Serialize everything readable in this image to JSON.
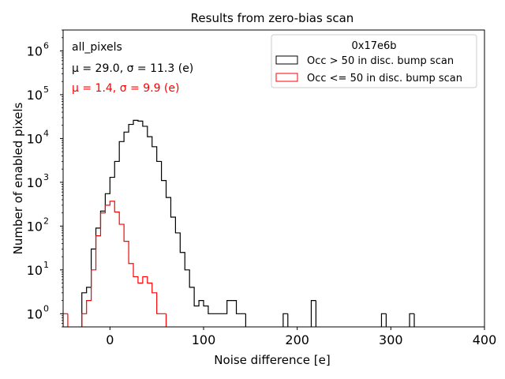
{
  "chart_data": {
    "type": "histogram",
    "title": "Results from zero-bias scan",
    "xlabel": "Noise difference [e]",
    "ylabel": "Number of enabled pixels",
    "xlim": [
      -50,
      400
    ],
    "ylim": [
      0.5,
      3000000
    ],
    "yscale": "log",
    "bin_width": 5,
    "x_ticks": [
      0,
      100,
      200,
      300,
      400
    ],
    "x_tick_labels": [
      "0",
      "100",
      "200",
      "300",
      "400"
    ],
    "y_ticks": [
      1,
      10,
      100,
      1000,
      10000,
      100000,
      1000000
    ],
    "y_tick_labels": [
      {
        "base": "10",
        "exp": "0"
      },
      {
        "base": "10",
        "exp": "1"
      },
      {
        "base": "10",
        "exp": "2"
      },
      {
        "base": "10",
        "exp": "3"
      },
      {
        "base": "10",
        "exp": "4"
      },
      {
        "base": "10",
        "exp": "5"
      },
      {
        "base": "10",
        "exp": "6"
      }
    ],
    "annotations": [
      {
        "text": "all_pixels",
        "color": "#000000"
      },
      {
        "text": "μ = 29.0, σ = 11.3 (e)",
        "color": "#000000"
      },
      {
        "text": "μ = 1.4, σ = 9.9 (e)",
        "color": "#ff0000"
      }
    ],
    "legend": {
      "title": "0x17e6b",
      "position": "top-right",
      "entries": [
        {
          "label": "Occ > 50 in disc. bump scan",
          "color": "#000000"
        },
        {
          "label": "Occ <= 50 in disc. bump scan",
          "color": "#ff0000"
        }
      ]
    },
    "series": [
      {
        "name": "Occ > 50 in disc. bump scan",
        "color": "#000000",
        "bins": [
          [
            -30,
            -25,
            3
          ],
          [
            -25,
            -20,
            4
          ],
          [
            -20,
            -15,
            30
          ],
          [
            -15,
            -10,
            90
          ],
          [
            -10,
            -5,
            220
          ],
          [
            -5,
            0,
            550
          ],
          [
            0,
            5,
            1300
          ],
          [
            5,
            10,
            3000
          ],
          [
            10,
            15,
            8500
          ],
          [
            15,
            20,
            14000
          ],
          [
            20,
            25,
            21000
          ],
          [
            25,
            30,
            26000
          ],
          [
            30,
            35,
            25000
          ],
          [
            35,
            40,
            19000
          ],
          [
            40,
            45,
            11000
          ],
          [
            45,
            50,
            6500
          ],
          [
            50,
            55,
            3000
          ],
          [
            55,
            60,
            1100
          ],
          [
            60,
            65,
            450
          ],
          [
            65,
            70,
            160
          ],
          [
            70,
            75,
            70
          ],
          [
            75,
            80,
            25
          ],
          [
            80,
            85,
            10
          ],
          [
            85,
            90,
            4
          ],
          [
            90,
            95,
            1.5
          ],
          [
            95,
            100,
            2
          ],
          [
            100,
            105,
            1.5
          ],
          [
            105,
            110,
            1
          ],
          [
            110,
            115,
            1
          ],
          [
            115,
            120,
            1
          ],
          [
            120,
            125,
            1
          ],
          [
            125,
            130,
            2
          ],
          [
            130,
            135,
            2
          ],
          [
            135,
            140,
            1
          ],
          [
            140,
            145,
            1
          ],
          [
            185,
            190,
            1
          ],
          [
            215,
            220,
            2
          ],
          [
            290,
            295,
            1
          ],
          [
            320,
            325,
            1
          ]
        ]
      },
      {
        "name": "Occ <= 50 in disc. bump scan",
        "color": "#ff0000",
        "bins": [
          [
            -50,
            -45,
            1
          ],
          [
            -30,
            -25,
            1
          ],
          [
            -25,
            -20,
            2
          ],
          [
            -20,
            -15,
            10
          ],
          [
            -15,
            -10,
            60
          ],
          [
            -10,
            -5,
            200
          ],
          [
            -5,
            0,
            300
          ],
          [
            0,
            5,
            370
          ],
          [
            5,
            10,
            210
          ],
          [
            10,
            15,
            110
          ],
          [
            15,
            20,
            45
          ],
          [
            20,
            25,
            14
          ],
          [
            25,
            30,
            7
          ],
          [
            30,
            35,
            5
          ],
          [
            35,
            40,
            7
          ],
          [
            40,
            45,
            5
          ],
          [
            45,
            50,
            3
          ],
          [
            50,
            55,
            1
          ],
          [
            55,
            60,
            1
          ]
        ]
      }
    ]
  }
}
